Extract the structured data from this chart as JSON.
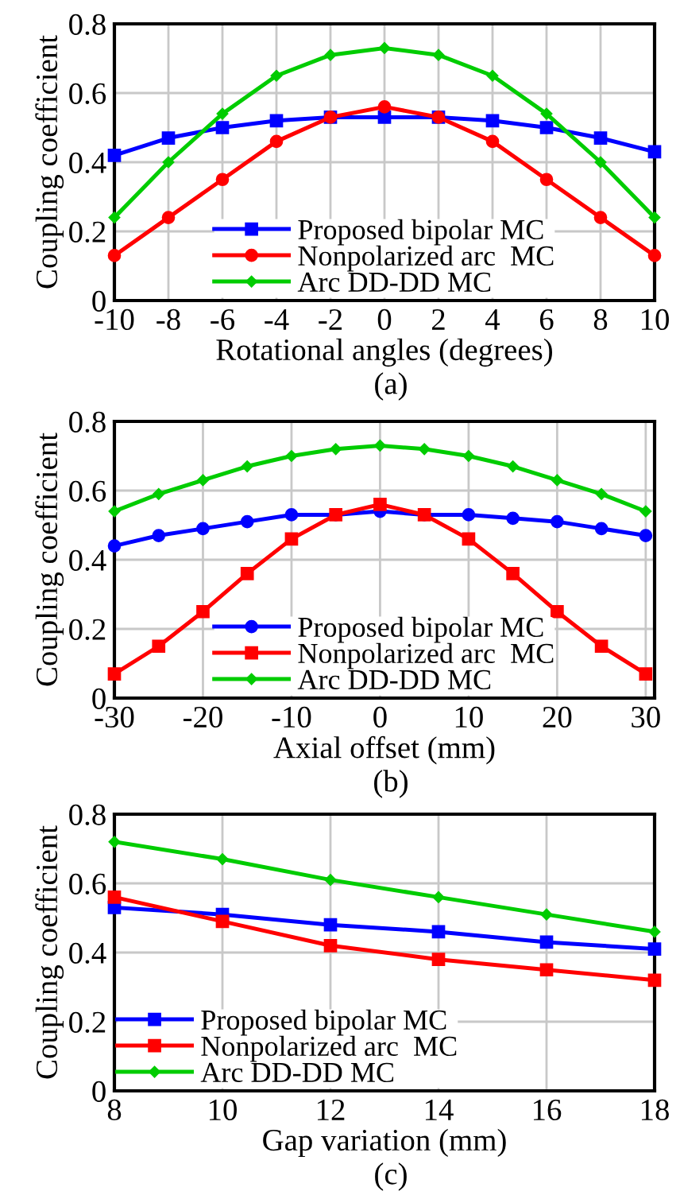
{
  "chart_data": [
    {
      "type": "line",
      "xlabel": "Rotational angles (degrees)",
      "ylabel": "Coupling coefficient",
      "annotations": [
        "(a)"
      ],
      "x": [
        -10,
        -8,
        -6,
        -4,
        -2,
        0,
        2,
        4,
        6,
        8,
        10
      ],
      "xlim": [
        -10,
        10
      ],
      "xticks": [
        -10,
        -8,
        -6,
        -4,
        -2,
        0,
        2,
        4,
        6,
        8,
        10
      ],
      "ylim": [
        0,
        0.8
      ],
      "yticks": [
        0,
        0.2,
        0.4,
        0.6,
        0.8
      ],
      "grid": true,
      "legend": "bottom",
      "series": [
        {
          "name": "Proposed bipolar MC",
          "color": "#0000ff",
          "marker": "square",
          "values": [
            0.42,
            0.47,
            0.5,
            0.52,
            0.53,
            0.53,
            0.53,
            0.52,
            0.5,
            0.47,
            0.43
          ]
        },
        {
          "name": "Nonpolarized arc  MC",
          "color": "#ff0000",
          "marker": "circle",
          "values": [
            0.13,
            0.24,
            0.35,
            0.46,
            0.53,
            0.56,
            0.53,
            0.46,
            0.35,
            0.24,
            0.13
          ]
        },
        {
          "name": "Arc DD-DD MC",
          "color": "#00cc00",
          "marker": "diamond",
          "values": [
            0.24,
            0.4,
            0.54,
            0.65,
            0.71,
            0.73,
            0.71,
            0.65,
            0.54,
            0.4,
            0.24
          ]
        }
      ]
    },
    {
      "type": "line",
      "xlabel": "Axial offset (mm)",
      "ylabel": "Coupling coefficient",
      "annotations": [
        "(b)"
      ],
      "x": [
        -30,
        -25,
        -20,
        -15,
        -10,
        -5,
        0,
        5,
        10,
        15,
        20,
        25,
        30
      ],
      "xlim": [
        -30,
        31
      ],
      "xticks": [
        -30,
        -20,
        -10,
        0,
        10,
        20,
        30
      ],
      "ylim": [
        0,
        0.8
      ],
      "yticks": [
        0,
        0.2,
        0.4,
        0.6,
        0.8
      ],
      "grid": true,
      "legend": "bottom",
      "series": [
        {
          "name": "Proposed bipolar MC",
          "color": "#0000ff",
          "marker": "circle",
          "values": [
            0.44,
            0.47,
            0.49,
            0.51,
            0.53,
            0.53,
            0.54,
            0.53,
            0.53,
            0.52,
            0.51,
            0.49,
            0.47
          ]
        },
        {
          "name": "Nonpolarized arc  MC",
          "color": "#ff0000",
          "marker": "square",
          "values": [
            0.07,
            0.15,
            0.25,
            0.36,
            0.46,
            0.53,
            0.56,
            0.53,
            0.46,
            0.36,
            0.25,
            0.15,
            0.07
          ]
        },
        {
          "name": "Arc DD-DD MC",
          "color": "#00cc00",
          "marker": "diamond",
          "values": [
            0.54,
            0.59,
            0.63,
            0.67,
            0.7,
            0.72,
            0.73,
            0.72,
            0.7,
            0.67,
            0.63,
            0.59,
            0.54
          ]
        }
      ]
    },
    {
      "type": "line",
      "xlabel": "Gap variation (mm)",
      "ylabel": "Coupling coefficient",
      "annotations": [
        "(c)"
      ],
      "x": [
        8,
        10,
        12,
        14,
        16,
        18
      ],
      "xlim": [
        8,
        18
      ],
      "xticks": [
        8,
        10,
        12,
        14,
        16,
        18
      ],
      "ylim": [
        0,
        0.8
      ],
      "yticks": [
        0,
        0.2,
        0.4,
        0.6,
        0.8
      ],
      "grid": true,
      "legend": "bottom left",
      "series": [
        {
          "name": "Proposed bipolar MC",
          "color": "#0000ff",
          "marker": "square",
          "values": [
            0.53,
            0.51,
            0.48,
            0.46,
            0.43,
            0.41
          ]
        },
        {
          "name": "Nonpolarized arc  MC",
          "color": "#ff0000",
          "marker": "square",
          "values": [
            0.56,
            0.49,
            0.42,
            0.38,
            0.35,
            0.32
          ]
        },
        {
          "name": "Arc DD-DD MC",
          "color": "#00cc00",
          "marker": "diamond",
          "values": [
            0.72,
            0.67,
            0.61,
            0.56,
            0.51,
            0.46
          ]
        }
      ]
    }
  ]
}
